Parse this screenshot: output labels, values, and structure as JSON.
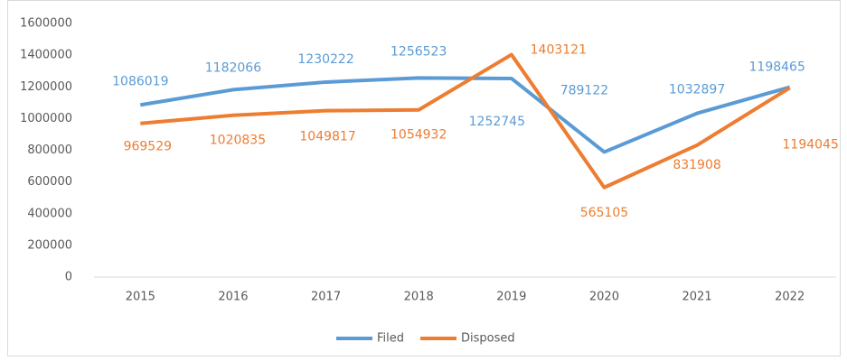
{
  "chart_data": {
    "type": "line",
    "categories": [
      "2015",
      "2016",
      "2017",
      "2018",
      "2019",
      "2020",
      "2021",
      "2022"
    ],
    "series": [
      {
        "name": "Filed",
        "color": "#5b9bd5",
        "values": [
          1086019,
          1182066,
          1230222,
          1256523,
          1252745,
          789122,
          1032897,
          1198465
        ]
      },
      {
        "name": "Disposed",
        "color": "#ed7d31",
        "values": [
          969529,
          1020835,
          1049817,
          1054932,
          1403121,
          565105,
          831908,
          1194045
        ]
      }
    ],
    "ylim": [
      0,
      1600000
    ],
    "yticks": [
      0,
      200000,
      400000,
      600000,
      800000,
      1000000,
      1200000,
      1400000,
      1600000
    ],
    "grid": false,
    "legend": "bottom",
    "data_labels": true
  }
}
